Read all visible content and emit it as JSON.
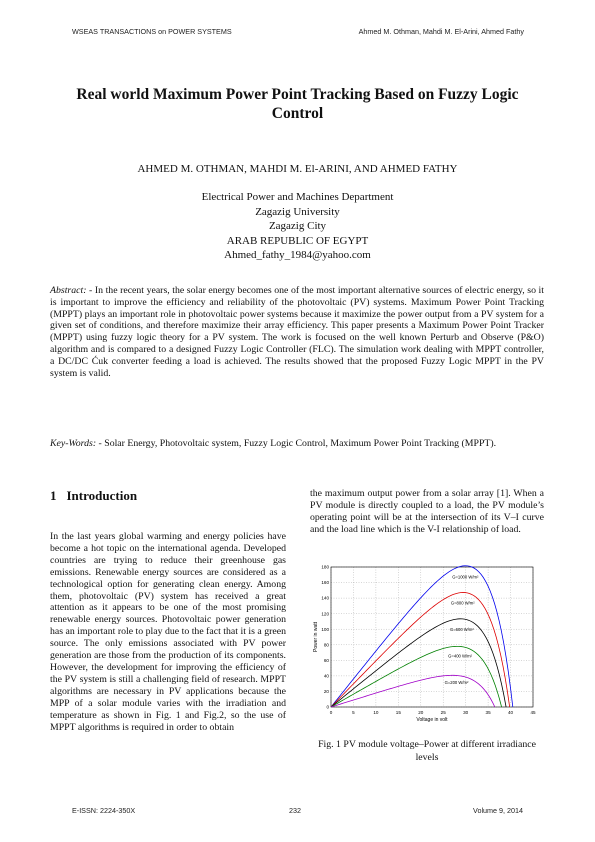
{
  "header": {
    "journal": "WSEAS TRANSACTIONS on POWER SYSTEMS",
    "authors_short": "Ahmed M. Othman, Mahdi M. El-Arini, Ahmed Fathy"
  },
  "title": "Real world Maximum Power Point Tracking Based on Fuzzy Logic Control",
  "authors": "AHMED M. OTHMAN, MAHDI M. El-ARINI, AND AHMED FATHY",
  "affiliation": {
    "dept": "Electrical Power and Machines Department",
    "univ": "Zagazig University",
    "city": "Zagazig City",
    "country": "ARAB REPUBLIC OF EGYPT",
    "email": "Ahmed_fathy_1984@yahoo.com"
  },
  "abstract": {
    "label": "Abstract:",
    "text": " - In the recent years, the solar energy becomes one of the most important alternative sources of electric energy, so it is important to improve the efficiency and reliability of the photovoltaic (PV) systems. Maximum Power Point Tracking (MPPT) plays an important role in photovoltaic power systems because it maximize the power output from a PV system for a given set of conditions, and therefore maximize their array efficiency. This paper presents a Maximum Power Point Tracker (MPPT) using fuzzy logic theory for a PV system. The work is focused on the well known Perturb and Observe (P&O) algorithm and is compared to a designed Fuzzy Logic Controller (FLC). The simulation work dealing with MPPT controller, a DC/DC Ćuk converter feeding a load is achieved. The results showed that the proposed Fuzzy Logic MPPT in the PV system is valid."
  },
  "keywords": {
    "label": "Key-Words:",
    "text": " - Solar Energy, Photovoltaic system, Fuzzy Logic Control, Maximum Power Point Tracking (MPPT)."
  },
  "section": {
    "number": "1",
    "title": "Introduction"
  },
  "intro_col1": "In the last years global warming and energy policies have become a hot topic on the international agenda. Developed countries are trying to reduce their greenhouse gas emissions. Renewable energy sources are considered as a technological option for generating clean energy. Among them, photovoltaic (PV) system has received a great attention as it appears to be one of the most promising renewable energy sources. Photovoltaic power generation has an important role to play due to the fact that it is a green source. The only emissions associated with PV power generation are those from the production of its components. However, the development for improving the efficiency of the PV system is still a challenging field of research. MPPT algorithms are necessary in PV applications because the MPP of a solar module varies with the irradiation and temperature as shown in Fig. 1 and Fig.2, so the use of MPPT algorithms is required in order to obtain",
  "intro_col2": "the  maximum output power from a solar array [1]. When a PV module is directly coupled to a load, the PV module’s operating point will be at the intersection of its V–I curve and the load line which is the V-I relationship of load.",
  "figure": {
    "caption": "Fig. 1 PV module voltage–Power at different irradiance levels"
  },
  "chart_data": {
    "type": "line",
    "xlabel": "Voltage in volt",
    "ylabel": "Power in watt",
    "xlim": [
      0,
      45
    ],
    "ylim": [
      0,
      180
    ],
    "xticks": [
      0,
      5,
      10,
      15,
      20,
      25,
      30,
      35,
      40,
      45
    ],
    "yticks": [
      0,
      20,
      40,
      60,
      80,
      100,
      120,
      140,
      160,
      180
    ],
    "grid": true,
    "series": [
      {
        "name": "G=1000 W/m²",
        "color": "#0000ee",
        "voc": 40.5,
        "pmax": 170,
        "vmp": 33.5
      },
      {
        "name": "G=800 W/m²",
        "color": "#dd0000",
        "voc": 39.8,
        "pmax": 136,
        "vmp": 33.2
      },
      {
        "name": "G=600 W/m²",
        "color": "#000000",
        "voc": 39.0,
        "pmax": 102,
        "vmp": 33.0
      },
      {
        "name": "G=400 W/m²",
        "color": "#008000",
        "voc": 38.0,
        "pmax": 68,
        "vmp": 32.6
      },
      {
        "name": "G=200 W/m²",
        "color": "#a000c8",
        "voc": 36.5,
        "pmax": 34,
        "vmp": 31.8
      }
    ]
  },
  "footer": {
    "issn": "E-ISSN: 2224-350X",
    "page": "232",
    "volume": "Volume 9, 2014"
  }
}
